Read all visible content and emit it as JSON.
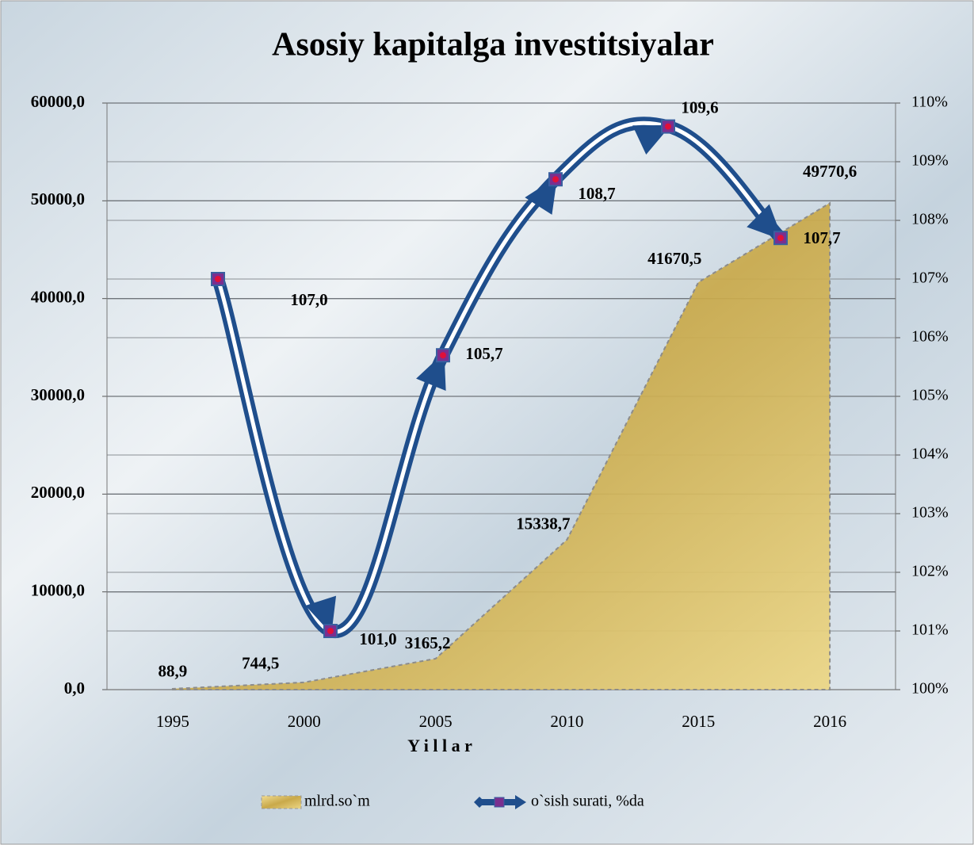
{
  "chart_data": {
    "type": "area_line",
    "title": "Asosiy kapitalga investitsiyalar",
    "x_label": "Y i l l a r",
    "categories": [
      "1995",
      "2000",
      "2005",
      "2010",
      "2015",
      "2016"
    ],
    "series": [
      {
        "name": "mlrd.so`m",
        "type": "area",
        "color": "#d9bd5e",
        "values": [
          88.9,
          744.5,
          3165.2,
          15338.7,
          41670.5,
          49770.6
        ],
        "value_labels": [
          "88,9",
          "744,5",
          "3165,2",
          "15338,7",
          "41670,5",
          "49770,6"
        ]
      },
      {
        "name": "o`sish surati, %da",
        "type": "line",
        "axis": "y2",
        "color": "#1f4e8c",
        "values": [
          107.0,
          101.0,
          105.7,
          108.7,
          109.6,
          107.7
        ],
        "value_labels": [
          "107,0",
          "101,0",
          "105,7",
          "108,7",
          "109,6",
          "107,7"
        ]
      }
    ],
    "ylim": [
      0,
      60000
    ],
    "yticks": [
      {
        "value": 0,
        "label": "0,0"
      },
      {
        "value": 10000,
        "label": "10000,0"
      },
      {
        "value": 20000,
        "label": "20000,0"
      },
      {
        "value": 30000,
        "label": "30000,0"
      },
      {
        "value": 40000,
        "label": "40000,0"
      },
      {
        "value": 50000,
        "label": "50000,0"
      },
      {
        "value": 60000,
        "label": "60000,0"
      }
    ],
    "y2lim": [
      100,
      110
    ],
    "y2ticks": [
      {
        "value": 100,
        "label": "100%"
      },
      {
        "value": 101,
        "label": "101%"
      },
      {
        "value": 102,
        "label": "102%"
      },
      {
        "value": 103,
        "label": "103%"
      },
      {
        "value": 104,
        "label": "104%"
      },
      {
        "value": 105,
        "label": "105%"
      },
      {
        "value": 106,
        "label": "106%"
      },
      {
        "value": 107,
        "label": "107%"
      },
      {
        "value": 108,
        "label": "108%"
      },
      {
        "value": 109,
        "label": "109%"
      },
      {
        "value": 110,
        "label": "110%"
      }
    ],
    "grid": true,
    "legend": "bottom"
  }
}
